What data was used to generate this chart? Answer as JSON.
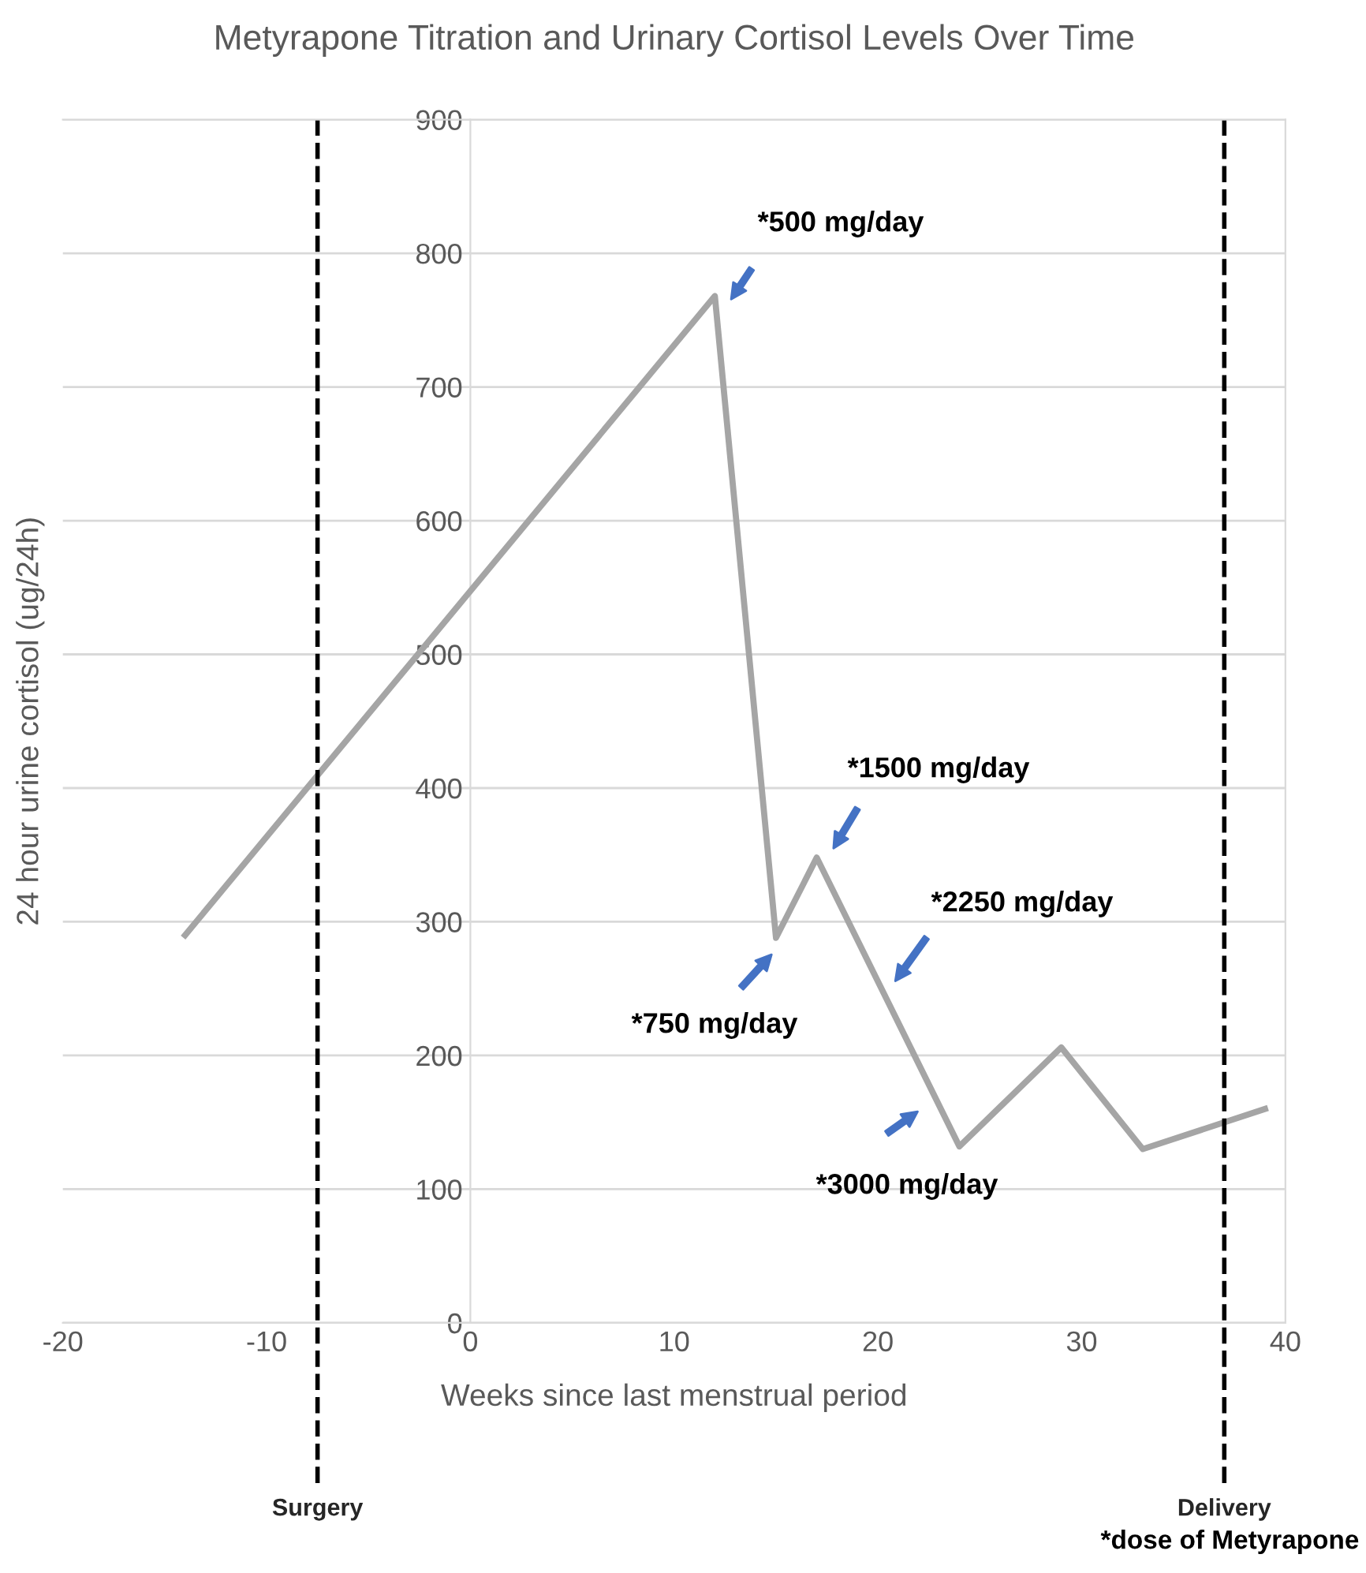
{
  "chart_data": {
    "type": "line",
    "title": "Metyrapone Titration and Urinary Cortisol Levels Over Time",
    "xlabel": "Weeks since last menstrual period",
    "ylabel": "24 hour urine cortisol (ug/24h)",
    "x": [
      -14,
      12,
      15,
      17,
      24,
      29,
      33,
      39
    ],
    "series": [
      {
        "color": "#a5a5a5",
        "values": [
          290,
          768,
          288,
          348,
          132,
          206,
          130,
          160
        ]
      }
    ],
    "xlim": [
      -20,
      40
    ],
    "xticks": [
      -20,
      -10,
      0,
      10,
      20,
      30,
      40
    ],
    "ylim": [
      0,
      900
    ],
    "yticks": [
      0,
      100,
      200,
      300,
      400,
      500,
      600,
      700,
      800,
      900
    ],
    "grid": "y",
    "marker": "none",
    "line_style": "solid",
    "ref_lines": [
      {
        "axis": "x",
        "value": -7.5,
        "label": "Surgery",
        "color": "#000000",
        "line_style": "dashed"
      },
      {
        "axis": "x",
        "value": 37,
        "label": "Delivery",
        "color": "#000000",
        "line_style": "dashed"
      }
    ],
    "annotations": [
      "*500 mg/day",
      "*750 mg/day",
      "*1500 mg/day",
      "*2250 mg/day",
      "*3000 mg/day",
      "*dose of Metyrapone"
    ]
  }
}
